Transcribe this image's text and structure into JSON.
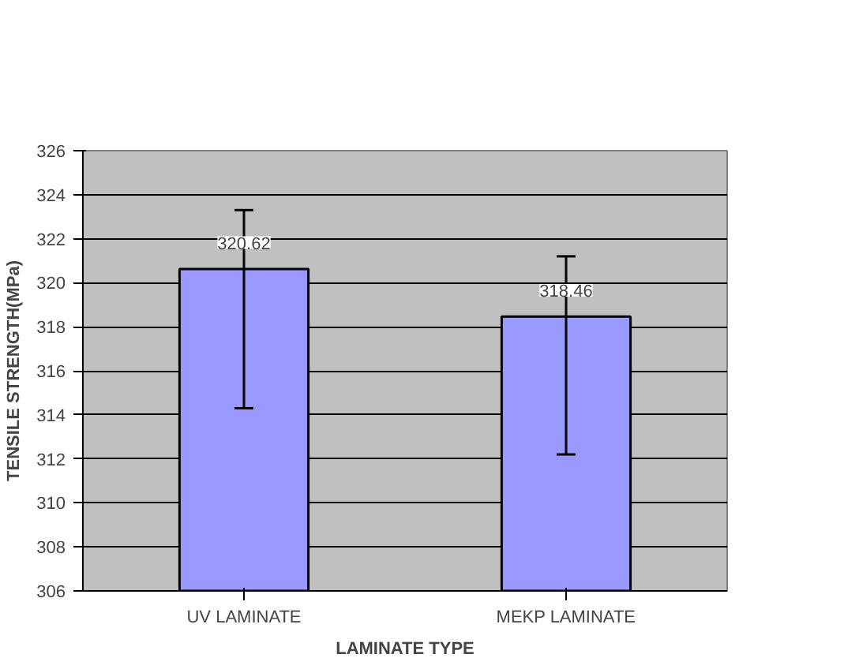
{
  "chart_data": {
    "type": "bar",
    "xlabel": "LAMINATE TYPE",
    "ylabel": "TENSILE STRENGTH(MPa)",
    "categories": [
      "UV LAMINATE",
      "MEKP LAMINATE"
    ],
    "values": [
      320.62,
      318.46
    ],
    "color": "#9999ff",
    "errors": [
      [
        314.3,
        323.3
      ],
      [
        312.2,
        321.2
      ]
    ],
    "data_labels": true,
    "ylim": [
      306,
      326
    ],
    "yticks": [
      306,
      308,
      310,
      312,
      314,
      316,
      318,
      320,
      322,
      324,
      326
    ],
    "grid": "y"
  }
}
